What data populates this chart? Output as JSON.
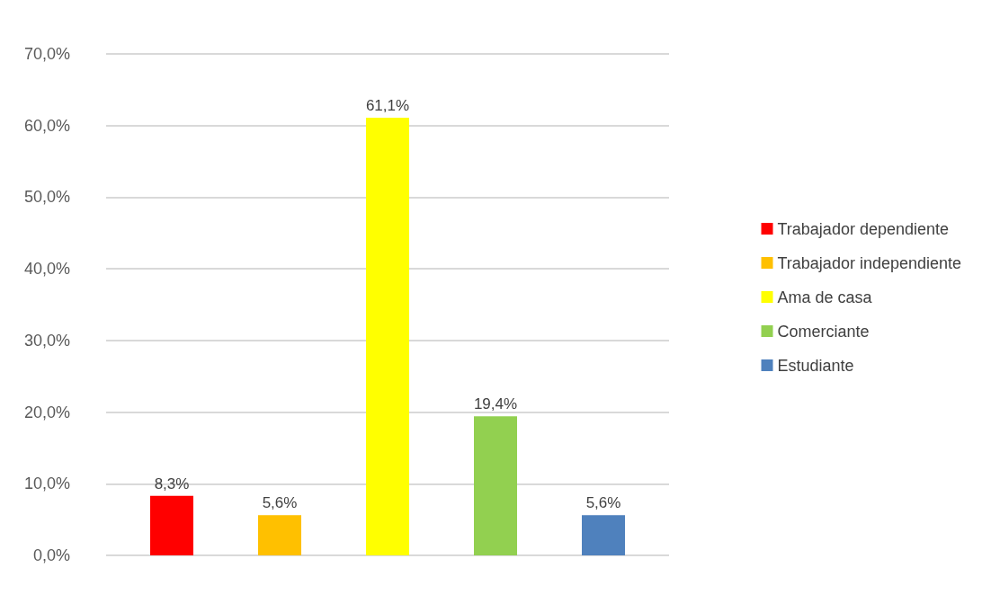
{
  "chart_data": {
    "type": "bar",
    "categories": [
      null
    ],
    "series": [
      {
        "name": "Trabajador dependiente",
        "color": "#ff0000",
        "values": [
          8.3
        ],
        "value_labels": [
          "8,3%"
        ]
      },
      {
        "name": "Trabajador independiente",
        "color": "#ffc000",
        "values": [
          5.6
        ],
        "value_labels": [
          "5,6%"
        ]
      },
      {
        "name": "Ama de casa",
        "color": "#ffff00",
        "values": [
          61.1
        ],
        "value_labels": [
          "61,1%"
        ]
      },
      {
        "name": "Comerciante",
        "color": "#92d050",
        "values": [
          19.4
        ],
        "value_labels": [
          "19,4%"
        ]
      },
      {
        "name": "Estudiante",
        "color": "#4f81bd",
        "values": [
          5.6
        ],
        "value_labels": [
          "5,6%"
        ]
      }
    ],
    "ylim": [
      0,
      70
    ],
    "yticks": [
      {
        "value": 0,
        "label": "0,0%"
      },
      {
        "value": 10,
        "label": "10,0%"
      },
      {
        "value": 20,
        "label": "20,0%"
      },
      {
        "value": 30,
        "label": "30,0%"
      },
      {
        "value": 40,
        "label": "40,0%"
      },
      {
        "value": 50,
        "label": "50,0%"
      },
      {
        "value": 60,
        "label": "60,0%"
      },
      {
        "value": 70,
        "label": "70,0%"
      }
    ],
    "grid": "y",
    "legend": "right"
  }
}
